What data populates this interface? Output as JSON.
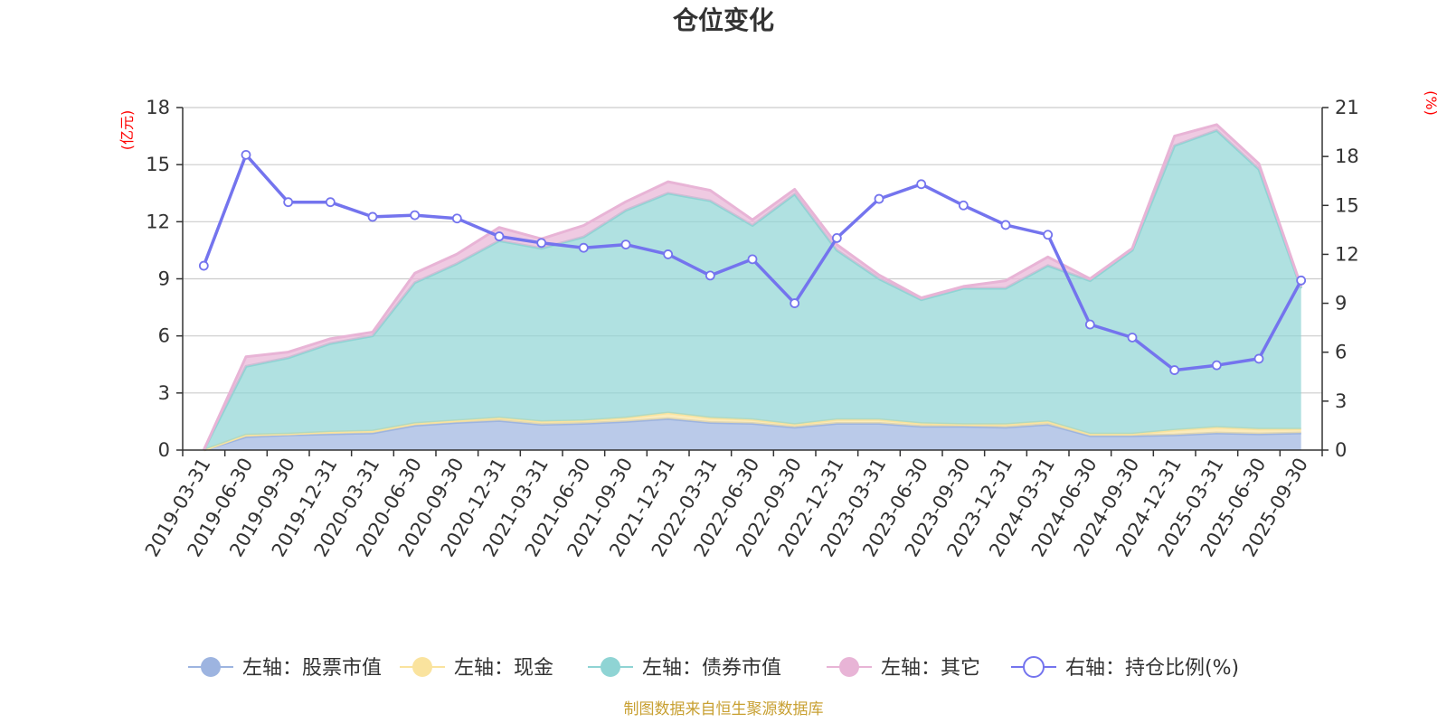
{
  "chart_data": {
    "type": "area",
    "title": "仓位变化",
    "left_unit": "(亿元)",
    "right_unit": "(%)",
    "source": "制图数据来自恒生聚源数据库",
    "categories": [
      "2019-03-31",
      "2019-06-30",
      "2019-09-30",
      "2019-12-31",
      "2020-03-31",
      "2020-06-30",
      "2020-09-30",
      "2020-12-31",
      "2021-03-31",
      "2021-06-30",
      "2021-09-30",
      "2021-12-31",
      "2022-03-31",
      "2022-06-30",
      "2022-09-30",
      "2022-12-31",
      "2023-03-31",
      "2023-06-30",
      "2023-09-30",
      "2023-12-31",
      "2024-03-31",
      "2024-06-30",
      "2024-09-30",
      "2024-12-31",
      "2025-03-31",
      "2025-06-30",
      "2025-09-30"
    ],
    "left_axis": {
      "min": 0,
      "max": 18,
      "ticks": [
        0,
        3,
        6,
        9,
        12,
        15,
        18
      ]
    },
    "right_axis": {
      "min": 0,
      "max": 21,
      "ticks": [
        0,
        3,
        6,
        9,
        12,
        15,
        18,
        21
      ]
    },
    "grid": true,
    "legend_position": "bottom",
    "series": [
      {
        "name": "左轴：股票市值",
        "axis": "left",
        "kind": "stacked-area",
        "color": "#9db4e0",
        "values": [
          0.0,
          0.7,
          0.8,
          0.85,
          0.9,
          1.3,
          1.45,
          1.55,
          1.35,
          1.4,
          1.5,
          1.65,
          1.45,
          1.4,
          1.2,
          1.4,
          1.4,
          1.25,
          1.25,
          1.2,
          1.35,
          0.75,
          0.75,
          0.8,
          0.9,
          0.85,
          0.9
        ]
      },
      {
        "name": "左轴：现金",
        "axis": "left",
        "kind": "stacked-area",
        "color": "#fae39e",
        "values": [
          0.0,
          0.1,
          0.05,
          0.1,
          0.1,
          0.1,
          0.1,
          0.15,
          0.15,
          0.15,
          0.2,
          0.3,
          0.25,
          0.2,
          0.15,
          0.2,
          0.2,
          0.15,
          0.1,
          0.15,
          0.15,
          0.1,
          0.1,
          0.25,
          0.3,
          0.25,
          0.2
        ]
      },
      {
        "name": "左轴：债券市值",
        "axis": "left",
        "kind": "stacked-area",
        "color": "#8fd4d4",
        "values": [
          0.0,
          3.6,
          4.0,
          4.65,
          5.0,
          7.4,
          8.25,
          9.3,
          9.1,
          9.65,
          10.9,
          11.55,
          11.4,
          10.2,
          12.1,
          8.9,
          7.4,
          6.5,
          7.15,
          7.15,
          8.2,
          8.05,
          9.65,
          14.95,
          15.6,
          13.65,
          7.4
        ]
      },
      {
        "name": "左轴：其它",
        "axis": "left",
        "kind": "stacked-area",
        "color": "#e8b4d6",
        "values": [
          0.0,
          0.5,
          0.3,
          0.25,
          0.2,
          0.5,
          0.5,
          0.7,
          0.5,
          0.6,
          0.45,
          0.6,
          0.55,
          0.3,
          0.25,
          0.3,
          0.2,
          0.1,
          0.1,
          0.4,
          0.45,
          0.1,
          0.1,
          0.5,
          0.3,
          0.3,
          0.1
        ]
      },
      {
        "name": "右轴：持仓比例(%)",
        "axis": "right",
        "kind": "line",
        "color": "#7474ee",
        "values": [
          11.3,
          18.1,
          15.2,
          15.2,
          14.3,
          14.4,
          14.2,
          13.1,
          12.7,
          12.4,
          12.6,
          12.0,
          10.7,
          11.7,
          9.0,
          13.0,
          15.4,
          16.3,
          15.0,
          13.8,
          13.2,
          7.7,
          6.9,
          4.9,
          5.2,
          5.6,
          10.4
        ]
      }
    ]
  }
}
